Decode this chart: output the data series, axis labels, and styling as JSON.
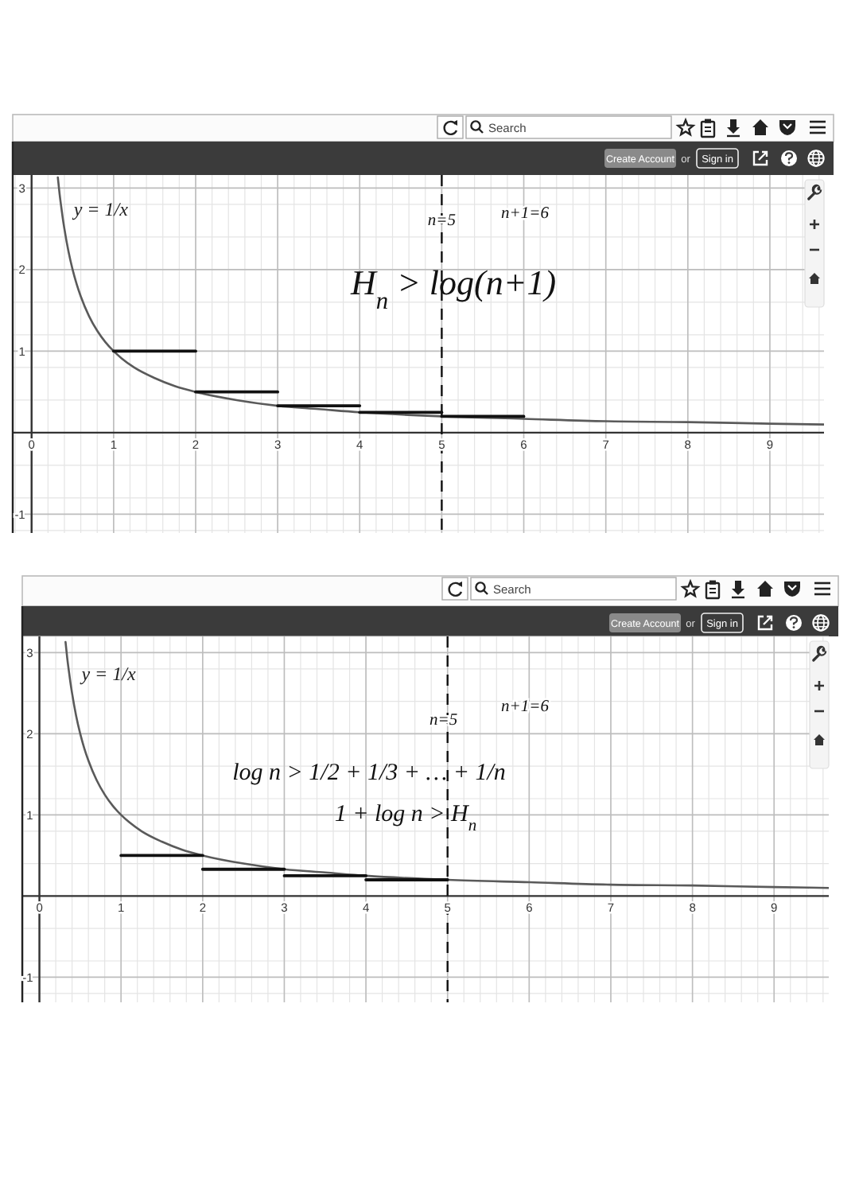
{
  "chart_data": [
    {
      "type": "line",
      "xlim": [
        -0.23,
        9.66
      ],
      "ylim": [
        -1.23,
        3.16
      ],
      "xticks": [
        0,
        1,
        2,
        3,
        4,
        5,
        6,
        7,
        8,
        9
      ],
      "yticks": [
        -1,
        1,
        2,
        3
      ],
      "grid": true,
      "series": [
        {
          "name": "y = 1/x",
          "color": "#5a5a5a",
          "x": [
            0.32,
            0.34,
            0.36,
            0.38,
            0.4,
            0.45,
            0.5,
            0.55,
            0.6,
            0.7,
            0.8,
            0.9,
            1,
            1.1,
            1.25,
            1.5,
            1.75,
            2,
            2.5,
            3,
            3.5,
            4,
            5,
            6,
            7,
            8,
            9,
            9.66
          ],
          "values": [
            3.13,
            2.94,
            2.78,
            2.63,
            2.5,
            2.22,
            2,
            1.82,
            1.67,
            1.43,
            1.25,
            1.11,
            1,
            0.91,
            0.8,
            0.67,
            0.57,
            0.5,
            0.4,
            0.33,
            0.29,
            0.25,
            0.2,
            0.17,
            0.14,
            0.13,
            0.11,
            0.1
          ]
        },
        {
          "color": "#111111",
          "x": [
            1,
            2
          ],
          "values": [
            1,
            1
          ]
        },
        {
          "color": "#111111",
          "x": [
            2,
            3
          ],
          "values": [
            0.5,
            0.5
          ]
        },
        {
          "color": "#111111",
          "x": [
            3,
            4
          ],
          "values": [
            0.33,
            0.33
          ]
        },
        {
          "color": "#111111",
          "x": [
            4,
            5
          ],
          "values": [
            0.25,
            0.25
          ]
        },
        {
          "color": "#111111",
          "x": [
            5,
            6
          ],
          "values": [
            0.2,
            0.2
          ]
        }
      ],
      "ref_lines": [
        {
          "axis": "x",
          "value": 5,
          "color": "#111111",
          "line_style": "dashed"
        }
      ],
      "annotations": [
        "Search",
        "Create Account",
        "or",
        "Sign in",
        {
          "text": "n=5",
          "x": 5,
          "y": 2.61
        },
        "n+1=6",
        "H$_{n}$ > log(n+1)"
      ]
    },
    {
      "type": "line",
      "xlim": [
        -0.21,
        9.67
      ],
      "ylim": [
        -1.31,
        3.2
      ],
      "xticks": [
        0,
        1,
        2,
        3,
        4,
        5,
        6,
        7,
        8,
        9
      ],
      "yticks": [
        -1,
        1,
        2,
        3
      ],
      "grid": true,
      "series": [
        {
          "name": "y = 1/x",
          "color": "#5a5a5a",
          "x": [
            0.32,
            0.34,
            0.36,
            0.38,
            0.4,
            0.45,
            0.5,
            0.55,
            0.6,
            0.7,
            0.8,
            0.9,
            1,
            1.1,
            1.25,
            1.5,
            1.75,
            2,
            2.5,
            3,
            3.5,
            4,
            5,
            6,
            7,
            8,
            9,
            9.67
          ],
          "values": [
            3.13,
            2.94,
            2.78,
            2.63,
            2.5,
            2.22,
            2,
            1.82,
            1.67,
            1.43,
            1.25,
            1.11,
            1,
            0.91,
            0.8,
            0.67,
            0.57,
            0.5,
            0.4,
            0.33,
            0.29,
            0.25,
            0.2,
            0.17,
            0.14,
            0.13,
            0.11,
            0.1
          ]
        },
        {
          "color": "#111111",
          "x": [
            1,
            2
          ],
          "values": [
            0.5,
            0.5
          ]
        },
        {
          "color": "#111111",
          "x": [
            2,
            3
          ],
          "values": [
            0.33,
            0.33
          ]
        },
        {
          "color": "#111111",
          "x": [
            3,
            4
          ],
          "values": [
            0.25,
            0.25
          ]
        },
        {
          "color": "#111111",
          "x": [
            4,
            5
          ],
          "values": [
            0.2,
            0.2
          ]
        }
      ],
      "ref_lines": [
        {
          "axis": "x",
          "value": 5,
          "color": "#111111",
          "line_style": "dashed"
        }
      ],
      "annotations": [
        "Search",
        "Create Account",
        "or",
        "Sign in",
        {
          "text": "n=5",
          "x": 4.95,
          "y": 2.18
        },
        "n+1=6",
        "log n > 1/2 + 1/3 + … + 1/n",
        "1 + log n > H$_{n}$"
      ]
    }
  ]
}
